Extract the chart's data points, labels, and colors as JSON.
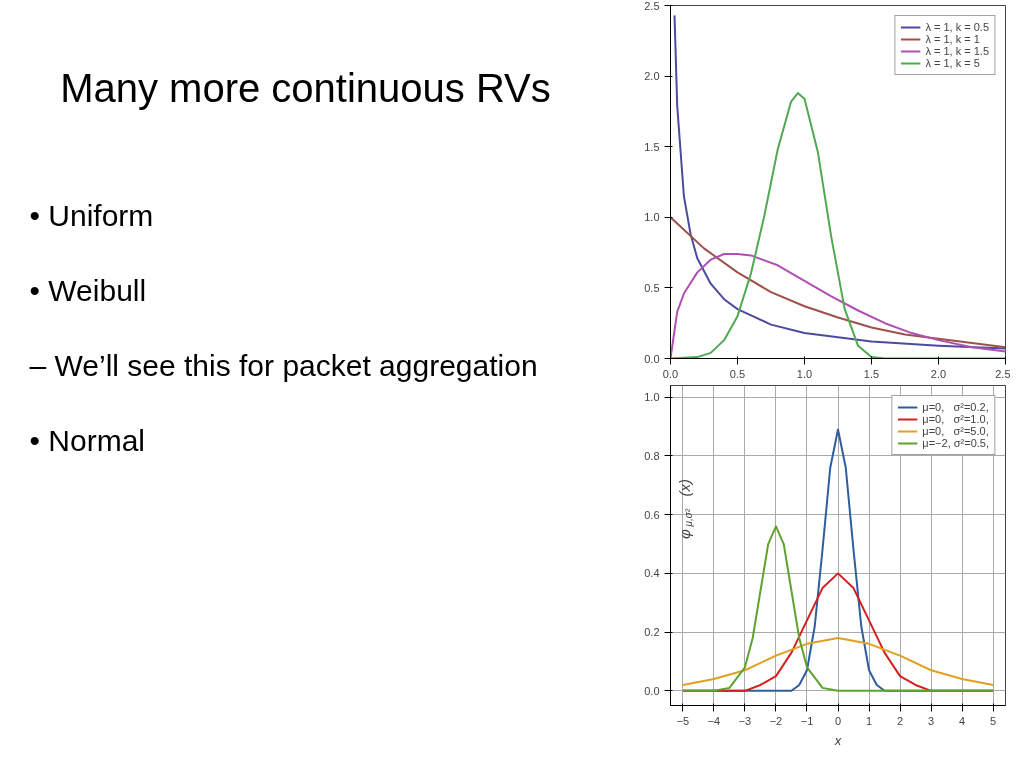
{
  "chart_data": [
    {
      "type": "other",
      "title": "Many more continuous RVs",
      "annotations": [
        "• Uniform",
        "• Weibull",
        "– We’ll see this for packet aggregation",
        "• Normal"
      ]
    },
    {
      "type": "line",
      "xlim": [
        0,
        2.5
      ],
      "ylim": [
        0,
        2.5
      ],
      "xticks": [
        {
          "value": 0,
          "label": "0.0"
        },
        0.5,
        {
          "value": 1,
          "label": "1.0"
        },
        1.5,
        {
          "value": 2,
          "label": "2.0"
        },
        2.5
      ],
      "yticks": [
        {
          "value": 0,
          "label": "0.0"
        },
        0.5,
        {
          "value": 1,
          "label": "1.0"
        },
        1.5,
        {
          "value": 2,
          "label": "2.0"
        },
        2.5
      ],
      "grid": false,
      "legend": "top right",
      "series": [
        {
          "name": "λ = 1, k = 0.5",
          "color": "#4b4ba0",
          "x": [
            0.03,
            0.05,
            0.1,
            0.15,
            0.2,
            0.3,
            0.4,
            0.5,
            0.75,
            1.0,
            1.25,
            1.5,
            2.0,
            2.5
          ],
          "values": [
            2.43,
            1.79,
            1.15,
            0.88,
            0.71,
            0.53,
            0.42,
            0.35,
            0.24,
            0.18,
            0.15,
            0.12,
            0.09,
            0.07
          ]
        },
        {
          "name": "λ = 1, k = 1",
          "color": "#a0504a",
          "x": [
            0,
            0.25,
            0.5,
            0.75,
            1.0,
            1.25,
            1.5,
            1.75,
            2.0,
            2.25,
            2.5
          ],
          "values": [
            1.0,
            0.78,
            0.61,
            0.47,
            0.37,
            0.29,
            0.22,
            0.17,
            0.14,
            0.11,
            0.08
          ]
        },
        {
          "name": "λ = 1, k = 1.5",
          "color": "#b050b0",
          "x": [
            0,
            0.05,
            0.1,
            0.2,
            0.3,
            0.4,
            0.5,
            0.6,
            0.8,
            1.0,
            1.2,
            1.4,
            1.6,
            1.8,
            2.0,
            2.25,
            2.5
          ],
          "values": [
            0,
            0.33,
            0.46,
            0.61,
            0.7,
            0.74,
            0.74,
            0.73,
            0.66,
            0.55,
            0.44,
            0.34,
            0.25,
            0.18,
            0.13,
            0.08,
            0.05
          ]
        },
        {
          "name": "λ = 1, k = 5",
          "color": "#50a850",
          "x": [
            0,
            0.2,
            0.3,
            0.4,
            0.5,
            0.6,
            0.7,
            0.8,
            0.9,
            0.95,
            1.0,
            1.1,
            1.2,
            1.3,
            1.4,
            1.5,
            1.6,
            2.0,
            2.5
          ],
          "values": [
            0,
            0.01,
            0.04,
            0.13,
            0.3,
            0.6,
            1.01,
            1.48,
            1.82,
            1.88,
            1.84,
            1.46,
            0.86,
            0.35,
            0.09,
            0.01,
            0,
            0,
            0
          ]
        }
      ]
    },
    {
      "type": "line",
      "xlabel": "x",
      "ylabel": "φ$_{μ,σ²}$(x)",
      "xlim": [
        -5.4,
        5.4
      ],
      "ylim": [
        -0.05,
        1.04
      ],
      "xticks": [
        -5,
        -4,
        -3,
        -2,
        -1,
        0,
        1,
        2,
        3,
        4,
        5
      ],
      "yticks": [
        {
          "value": 0,
          "label": "0.0"
        },
        0.2,
        0.4,
        0.6,
        0.8,
        {
          "value": 1,
          "label": "1.0"
        }
      ],
      "grid": true,
      "legend": "top right",
      "series": [
        {
          "name": "μ=0,   σ²=0.2,",
          "color": "#2f5d9e",
          "x": [
            -5,
            -2,
            -1.5,
            -1.25,
            -1,
            -0.75,
            -0.5,
            -0.25,
            0,
            0.25,
            0.5,
            0.75,
            1,
            1.25,
            1.5,
            2,
            5
          ],
          "values": [
            0,
            0,
            0,
            0.02,
            0.07,
            0.22,
            0.48,
            0.76,
            0.89,
            0.76,
            0.48,
            0.22,
            0.07,
            0.02,
            0,
            0,
            0
          ]
        },
        {
          "name": "μ=0,   σ²=1.0,",
          "color": "#d42020",
          "x": [
            -5,
            -4,
            -3,
            -2.5,
            -2,
            -1.5,
            -1,
            -0.5,
            0,
            0.5,
            1,
            1.5,
            2,
            2.5,
            3,
            4,
            5
          ],
          "values": [
            0,
            0,
            0,
            0.02,
            0.05,
            0.13,
            0.24,
            0.35,
            0.4,
            0.35,
            0.24,
            0.13,
            0.05,
            0.02,
            0,
            0,
            0
          ]
        },
        {
          "name": "μ=0,   σ²=5.0,",
          "color": "#e0a020",
          "x": [
            -5,
            -4,
            -3,
            -2,
            -1,
            0,
            1,
            2,
            3,
            4,
            5
          ],
          "values": [
            0.02,
            0.04,
            0.07,
            0.12,
            0.16,
            0.18,
            0.16,
            0.12,
            0.07,
            0.04,
            0.02
          ]
        },
        {
          "name": "μ=−2, σ²=0.5,",
          "color": "#5ea330",
          "x": [
            -5,
            -4,
            -3.5,
            -3,
            -2.75,
            -2.5,
            -2.25,
            -2,
            -1.75,
            -1.5,
            -1.25,
            -1,
            -0.5,
            0,
            5
          ],
          "values": [
            0,
            0,
            0.01,
            0.08,
            0.18,
            0.34,
            0.5,
            0.56,
            0.5,
            0.34,
            0.18,
            0.08,
            0.01,
            0,
            0
          ]
        }
      ]
    }
  ]
}
